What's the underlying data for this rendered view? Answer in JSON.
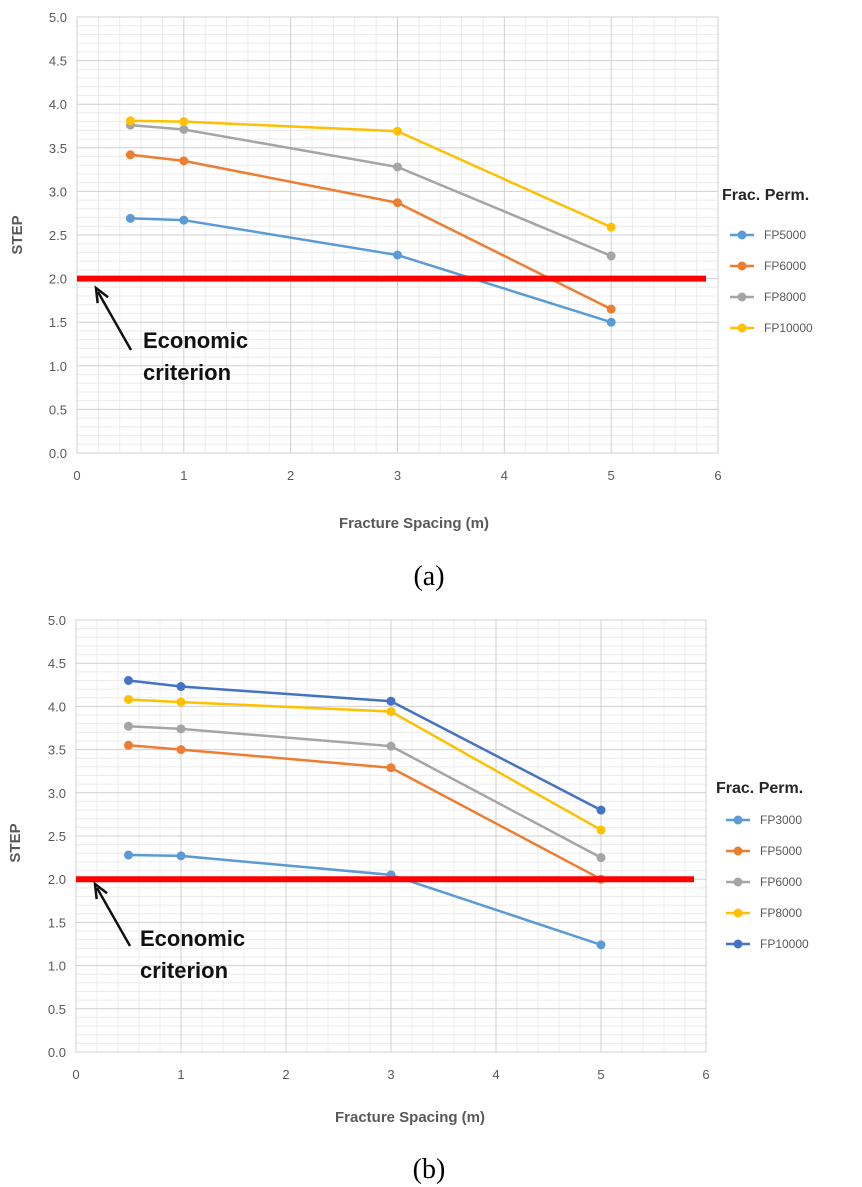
{
  "chart_data": [
    {
      "type": "line",
      "panel_label": "(a)",
      "xlabel": "Fracture Spacing (m)",
      "ylabel": "STEP",
      "xlim": [
        0,
        6
      ],
      "ylim": [
        0,
        5
      ],
      "x_ticks": [
        "0",
        "1",
        "2",
        "3",
        "4",
        "5",
        "6"
      ],
      "y_ticks": [
        "0.0",
        "0.5",
        "1.0",
        "1.5",
        "2.0",
        "2.5",
        "3.0",
        "3.5",
        "4.0",
        "4.5",
        "5.0"
      ],
      "grid": true,
      "legend_title": "Frac. Perm.",
      "legend_position": "right",
      "x": [
        0.5,
        1,
        3,
        5
      ],
      "series": [
        {
          "name": "FP5000",
          "color": "#5B9BD5",
          "values": [
            2.69,
            2.67,
            2.27,
            1.5
          ]
        },
        {
          "name": "FP6000",
          "color": "#ED7D31",
          "values": [
            3.42,
            3.35,
            2.87,
            1.65
          ]
        },
        {
          "name": "FP8000",
          "color": "#A5A5A5",
          "values": [
            3.76,
            3.71,
            3.28,
            2.26
          ]
        },
        {
          "name": "FP10000",
          "color": "#FFC000",
          "values": [
            3.81,
            3.8,
            3.69,
            2.59
          ]
        }
      ],
      "reference_line": {
        "y": 2.0,
        "color": "#FF0000"
      },
      "annotation": {
        "line1": "Economic",
        "line2": "criterion",
        "points_to": [
          0.2,
          2.0
        ]
      }
    },
    {
      "type": "line",
      "panel_label": "(b)",
      "xlabel": "Fracture Spacing (m)",
      "ylabel": "STEP",
      "xlim": [
        0,
        6
      ],
      "ylim": [
        0,
        5
      ],
      "x_ticks": [
        "0",
        "1",
        "2",
        "3",
        "4",
        "5",
        "6"
      ],
      "y_ticks": [
        "0.0",
        "0.5",
        "1.0",
        "1.5",
        "2.0",
        "2.5",
        "3.0",
        "3.5",
        "4.0",
        "4.5",
        "5.0"
      ],
      "grid": true,
      "legend_title": "Frac. Perm.",
      "legend_position": "right",
      "x": [
        0.5,
        1,
        3,
        5
      ],
      "series": [
        {
          "name": "FP3000",
          "color": "#5B9BD5",
          "values": [
            2.28,
            2.27,
            2.05,
            1.24
          ]
        },
        {
          "name": "FP5000",
          "color": "#ED7D31",
          "values": [
            3.55,
            3.5,
            3.29,
            2.0
          ]
        },
        {
          "name": "FP6000",
          "color": "#A5A5A5",
          "values": [
            3.77,
            3.74,
            3.54,
            2.25
          ]
        },
        {
          "name": "FP8000",
          "color": "#FFC000",
          "values": [
            4.08,
            4.05,
            3.94,
            2.57
          ]
        },
        {
          "name": "FP10000",
          "color": "#4472C4",
          "values": [
            4.3,
            4.23,
            4.06,
            2.8
          ]
        }
      ],
      "reference_line": {
        "y": 2.0,
        "color": "#FF0000"
      },
      "annotation": {
        "line1": "Economic",
        "line2": "criterion",
        "points_to": [
          0.2,
          2.0
        ]
      }
    }
  ]
}
